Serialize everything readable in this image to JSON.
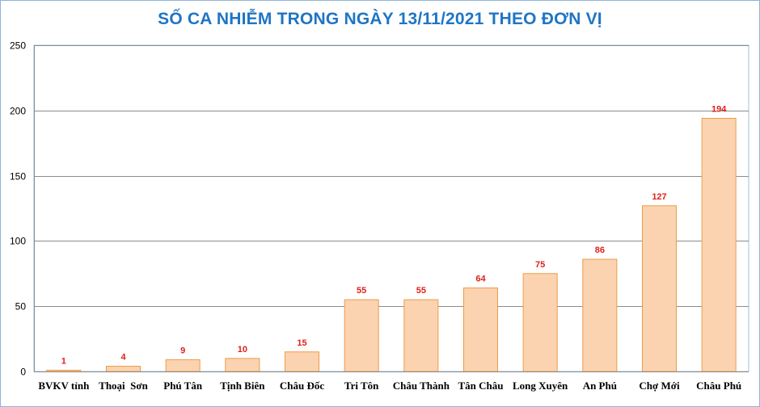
{
  "chart_data": {
    "type": "bar",
    "title": "SỐ CA NHIỄM TRONG NGÀY 13/11/2021 THEO ĐƠN VỊ",
    "categories": [
      "BVKV tỉnh",
      "Thoại  Sơn",
      "Phú Tân",
      "Tịnh Biên",
      "Châu Đốc",
      "Tri Tôn",
      "Châu Thành",
      "Tân Châu",
      "Long Xuyên",
      "An Phú",
      "Chợ Mới",
      "Châu Phú"
    ],
    "values": [
      1,
      4,
      9,
      10,
      15,
      55,
      55,
      64,
      75,
      86,
      127,
      194
    ],
    "ylim": [
      0,
      250
    ],
    "yticks": [
      0,
      50,
      100,
      150,
      200,
      250
    ],
    "grid": true,
    "colors": {
      "bar_fill": "#fbd3b0",
      "bar_stroke": "#ed9b4a",
      "label": "#e0201b",
      "title": "#1f75c4",
      "grid": "#8c8c8c"
    }
  }
}
